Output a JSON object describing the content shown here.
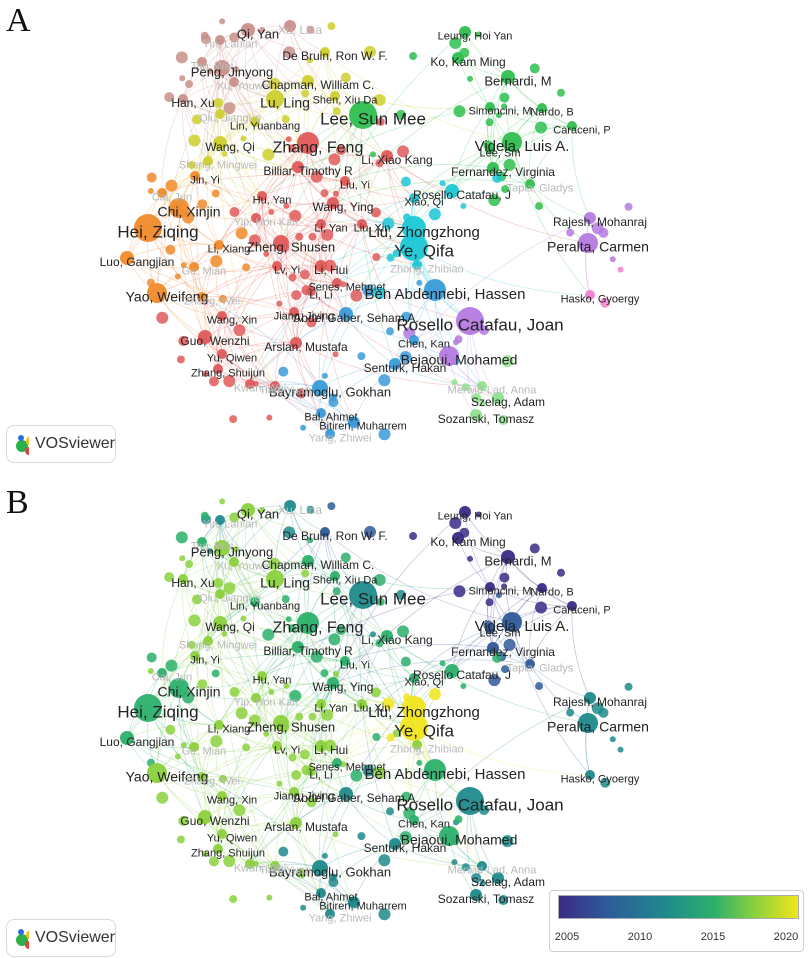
{
  "panels": {
    "a": {
      "letter": "A"
    },
    "b": {
      "letter": "B"
    }
  },
  "watermark": {
    "text": "VOSviewer"
  },
  "colorbar": {
    "ticks": [
      "2005",
      "2010",
      "2015",
      "2020"
    ],
    "colors": [
      "#3b2a86",
      "#2e5a9a",
      "#1f8a8c",
      "#2cb06a",
      "#8bd13c",
      "#f1e51d"
    ]
  },
  "labels": [
    {
      "text": "Qi, Yan"
    },
    {
      "text": "Xu, Lina",
      "faint": true
    },
    {
      "text": "Yin, Lanlan",
      "faint": true
    },
    {
      "text": "Tao, Wei",
      "faint": true
    },
    {
      "text": "Peng, Jinyong"
    },
    {
      "text": "Xu, Youwei",
      "faint": true
    },
    {
      "text": "Han, Xu"
    },
    {
      "text": "De Bruin, Ron W. F."
    },
    {
      "text": "Leung, Hoi Yan"
    },
    {
      "text": "Ko, Kam Ming"
    },
    {
      "text": "Chapman, William C."
    },
    {
      "text": "Shen, Xiu Da"
    },
    {
      "text": "Bernardi, M"
    },
    {
      "text": "Lu, Ling"
    },
    {
      "text": "Lee, Sun Mee"
    },
    {
      "text": "Simoncini, M"
    },
    {
      "text": "Nardo, B"
    },
    {
      "text": "Lin, Yuanbang"
    },
    {
      "text": "Qiu, Jianguo",
      "faint": true
    },
    {
      "text": "Caraceni, P"
    },
    {
      "text": "Wang, Qi"
    },
    {
      "text": "Zhang, Feng"
    },
    {
      "text": "Videla, Luis A."
    },
    {
      "text": "Li, Xiao Kang"
    },
    {
      "text": "Lee, Sm"
    },
    {
      "text": "Sheng, Mingwei",
      "faint": true
    },
    {
      "text": "Billiar, Timothy R"
    },
    {
      "text": "Fernandez, Virginia"
    },
    {
      "text": "Jin, Yi"
    },
    {
      "text": "Liu, Yi"
    },
    {
      "text": "Rosello Catafau, J"
    },
    {
      "text": "Tapia, Gladys",
      "faint": true
    },
    {
      "text": "Cai, Jun",
      "faint": true
    },
    {
      "text": "Chi, Xinjin"
    },
    {
      "text": "Hu, Yan"
    },
    {
      "text": "Wang, Ying"
    },
    {
      "text": "Xiao, Qi"
    },
    {
      "text": "Rajesh, Mohanraj"
    },
    {
      "text": "Hei, Ziqing"
    },
    {
      "text": "Liu, Zhongzhong"
    },
    {
      "text": "Yip, Hon Kan",
      "faint": true
    },
    {
      "text": "Li, Yan"
    },
    {
      "text": "Liu, Xin"
    },
    {
      "text": "Li, Xiang"
    },
    {
      "text": "Zheng, Shusen"
    },
    {
      "text": "Ye, Qifa"
    },
    {
      "text": "Peralta, Carmen"
    },
    {
      "text": "Luo, Gangjian"
    },
    {
      "text": "Ge, Mian",
      "faint": true
    },
    {
      "text": "Lv, Yi"
    },
    {
      "text": "Li, Hui"
    },
    {
      "text": "Zhong, Zhibiao",
      "faint": true
    },
    {
      "text": "Yao, Weifeng"
    },
    {
      "text": "Senes, Mehmet"
    },
    {
      "text": "Ben Abdennebi, Hassen"
    },
    {
      "text": "Li, Li"
    },
    {
      "text": "Hasko, Gyoergy"
    },
    {
      "text": "Wang, Xin"
    },
    {
      "text": "Jiang, Jiying"
    },
    {
      "text": "Abdel Gaber, Seham A."
    },
    {
      "text": "Rosello Catafau, Joan"
    },
    {
      "text": "Guo, Wenzhi"
    },
    {
      "text": "Arslan, Mustafa"
    },
    {
      "text": "Chen, Kan"
    },
    {
      "text": "Yu, Qiwen"
    },
    {
      "text": "Bejaoui, Mohamed"
    },
    {
      "text": "Zhang, Shuijun"
    },
    {
      "text": "Senturk, Hakan"
    },
    {
      "text": "Bayramoglu, Gokhan"
    },
    {
      "text": "Bal, Ahmet"
    },
    {
      "text": "Merwid-Lad, Anna",
      "faint": true
    },
    {
      "text": "Szelag, Adam"
    },
    {
      "text": "Sozanski, Tomasz"
    },
    {
      "text": "Bitiren, Muharrem"
    },
    {
      "text": "Yang, Zhiwei",
      "faint": true
    },
    {
      "text": "Zhang, Wei",
      "faint": true
    },
    {
      "text": "Tian, Yuan",
      "faint": true
    },
    {
      "text": "Kwan, Wei",
      "faint": true
    }
  ],
  "palettes": {
    "a": [
      "#e05a5a",
      "#f08a2a",
      "#cfcf2e",
      "#2fbf4f",
      "#1cc7d6",
      "#b47ae0",
      "#3a9bd8",
      "#c98f8a",
      "#f27fd0",
      "#8fe08f"
    ],
    "b": [
      "#3b2a86",
      "#2e5a9a",
      "#1f8a8c",
      "#2cb06a",
      "#8bd13c",
      "#f1e51d"
    ]
  }
}
